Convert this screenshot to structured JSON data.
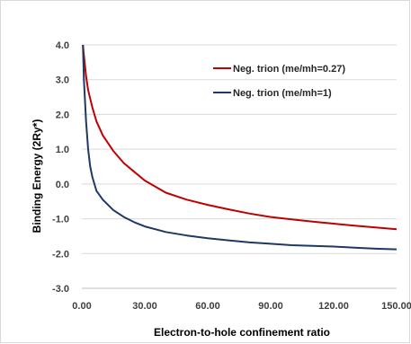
{
  "chart_data": {
    "type": "line",
    "xlabel": "Electron-to-hole confinement ratio",
    "ylabel": "Binding Energy (2Ry*)",
    "xlim": [
      0,
      150
    ],
    "ylim": [
      -3,
      4
    ],
    "x_ticks": [
      0,
      30,
      60,
      90,
      120,
      150
    ],
    "x_tick_labels": [
      "0.00",
      "30.00",
      "60.00",
      "90.00",
      "120.00",
      "150.00"
    ],
    "y_ticks": [
      4,
      3,
      2,
      1,
      0,
      -1,
      -2,
      -3
    ],
    "y_tick_labels": [
      "4.0",
      "3.0",
      "2.0",
      "1.0",
      "0.0",
      "-1.0",
      "-2.0",
      "-3.0"
    ],
    "grid": "horizontal",
    "legend_position": "top-right",
    "series": [
      {
        "name": "Neg. trion (me/mh=0.27)",
        "color": "#c00000",
        "x": [
          0.5,
          1,
          2,
          3,
          5,
          7,
          10,
          15,
          20,
          25,
          30,
          40,
          50,
          60,
          70,
          80,
          90,
          100,
          110,
          120,
          130,
          140,
          150
        ],
        "y": [
          4.0,
          3.7,
          3.1,
          2.7,
          2.2,
          1.8,
          1.4,
          0.95,
          0.6,
          0.35,
          0.1,
          -0.25,
          -0.45,
          -0.6,
          -0.73,
          -0.85,
          -0.95,
          -1.02,
          -1.08,
          -1.14,
          -1.2,
          -1.25,
          -1.3
        ]
      },
      {
        "name": "Neg. trion (me/mh=1)",
        "color": "#1f3864",
        "x": [
          0.5,
          1,
          2,
          3,
          4,
          5,
          7,
          10,
          15,
          20,
          25,
          30,
          40,
          50,
          60,
          70,
          80,
          90,
          100,
          110,
          120,
          130,
          140,
          150
        ],
        "y": [
          4.0,
          3.0,
          1.8,
          1.0,
          0.5,
          0.2,
          -0.2,
          -0.45,
          -0.75,
          -0.95,
          -1.1,
          -1.22,
          -1.38,
          -1.48,
          -1.56,
          -1.62,
          -1.68,
          -1.72,
          -1.76,
          -1.78,
          -1.8,
          -1.83,
          -1.86,
          -1.88
        ]
      }
    ]
  }
}
